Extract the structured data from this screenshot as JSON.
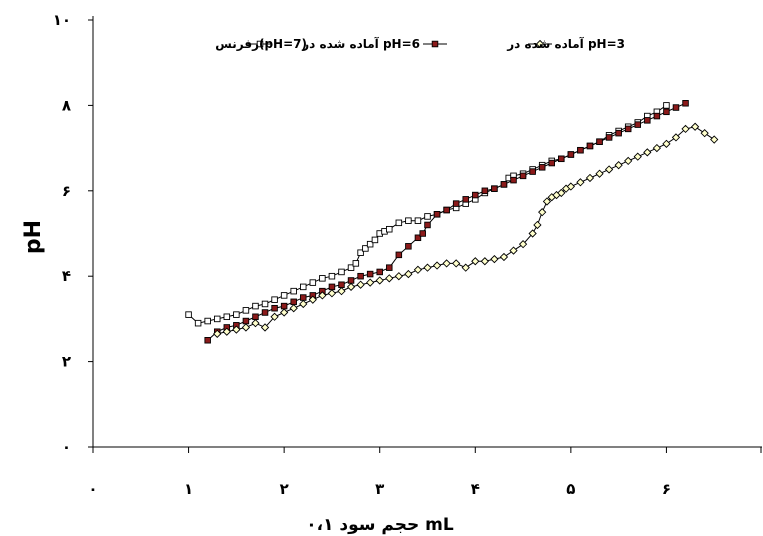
{
  "chart_data": {
    "type": "line",
    "xlabel": "حجم سود ۰،۱ mL",
    "ylabel": "pH",
    "xlim": [
      0,
      7
    ],
    "ylim": [
      0,
      10
    ],
    "x_ticks": [
      0,
      1,
      2,
      3,
      4,
      5,
      6
    ],
    "x_tick_labels": [
      "۰",
      "۱",
      "۲",
      "۳",
      "۴",
      "۵",
      "۶"
    ],
    "y_ticks": [
      0,
      2,
      4,
      6,
      8,
      10
    ],
    "y_tick_labels": [
      "۰",
      "۲",
      "۴",
      "۶",
      "۸",
      "۱۰"
    ],
    "grid": false,
    "legend_position": "top",
    "series": [
      {
        "name": "رفرنس(pH=7)",
        "marker": "square-open",
        "line_color": "#000000",
        "marker_fill": "#ffffff",
        "x": [
          1.0,
          1.1,
          1.2,
          1.3,
          1.4,
          1.5,
          1.6,
          1.7,
          1.8,
          1.9,
          2.0,
          2.1,
          2.2,
          2.3,
          2.4,
          2.5,
          2.6,
          2.7,
          2.75,
          2.8,
          2.85,
          2.9,
          2.95,
          3.0,
          3.05,
          3.1,
          3.2,
          3.3,
          3.4,
          3.5,
          3.6,
          3.7,
          3.8,
          3.9,
          4.0,
          4.1,
          4.2,
          4.3,
          4.35,
          4.4,
          4.5,
          4.6,
          4.7,
          4.8,
          4.9,
          5.0,
          5.1,
          5.2,
          5.3,
          5.4,
          5.5,
          5.6,
          5.7,
          5.8,
          5.9,
          6.0
        ],
        "y": [
          3.1,
          2.9,
          2.95,
          3.0,
          3.05,
          3.1,
          3.2,
          3.3,
          3.35,
          3.45,
          3.55,
          3.65,
          3.75,
          3.85,
          3.95,
          4.0,
          4.1,
          4.2,
          4.3,
          4.55,
          4.65,
          4.75,
          4.85,
          5.0,
          5.05,
          5.1,
          5.25,
          5.3,
          5.3,
          5.4,
          5.45,
          5.55,
          5.6,
          5.7,
          5.8,
          5.95,
          6.05,
          6.15,
          6.3,
          6.35,
          6.4,
          6.5,
          6.6,
          6.7,
          6.75,
          6.85,
          6.95,
          7.05,
          7.15,
          7.3,
          7.4,
          7.5,
          7.6,
          7.75,
          7.85,
          8.0
        ]
      },
      {
        "name": "آماده شده در pH=6",
        "marker": "square-filled",
        "line_color": "#000000",
        "marker_fill": "#8b1a1a",
        "x": [
          1.2,
          1.3,
          1.4,
          1.5,
          1.6,
          1.7,
          1.8,
          1.9,
          2.0,
          2.1,
          2.2,
          2.3,
          2.4,
          2.5,
          2.6,
          2.7,
          2.8,
          2.9,
          3.0,
          3.1,
          3.2,
          3.3,
          3.4,
          3.45,
          3.5,
          3.6,
          3.7,
          3.8,
          3.9,
          4.0,
          4.1,
          4.2,
          4.3,
          4.4,
          4.5,
          4.6,
          4.7,
          4.8,
          4.9,
          5.0,
          5.1,
          5.2,
          5.3,
          5.4,
          5.5,
          5.6,
          5.7,
          5.8,
          5.9,
          6.0,
          6.1,
          6.2
        ],
        "y": [
          2.5,
          2.7,
          2.8,
          2.85,
          2.95,
          3.05,
          3.15,
          3.25,
          3.3,
          3.4,
          3.5,
          3.55,
          3.65,
          3.75,
          3.8,
          3.9,
          4.0,
          4.05,
          4.1,
          4.2,
          4.5,
          4.7,
          4.9,
          5.0,
          5.2,
          5.45,
          5.55,
          5.7,
          5.8,
          5.9,
          6.0,
          6.05,
          6.15,
          6.25,
          6.35,
          6.45,
          6.55,
          6.65,
          6.75,
          6.85,
          6.95,
          7.05,
          7.15,
          7.25,
          7.35,
          7.45,
          7.55,
          7.65,
          7.75,
          7.85,
          7.95,
          8.05
        ]
      },
      {
        "name": "آماده شده در pH=3",
        "marker": "diamond-open",
        "line_color": "#000000",
        "marker_fill": "#ffffcc",
        "x": [
          1.3,
          1.4,
          1.5,
          1.6,
          1.7,
          1.8,
          1.9,
          2.0,
          2.1,
          2.2,
          2.3,
          2.4,
          2.5,
          2.6,
          2.7,
          2.8,
          2.9,
          3.0,
          3.1,
          3.2,
          3.3,
          3.4,
          3.5,
          3.6,
          3.7,
          3.8,
          3.9,
          4.0,
          4.1,
          4.2,
          4.3,
          4.4,
          4.5,
          4.6,
          4.65,
          4.7,
          4.75,
          4.8,
          4.85,
          4.9,
          4.95,
          5.0,
          5.1,
          5.2,
          5.3,
          5.4,
          5.5,
          5.6,
          5.7,
          5.8,
          5.9,
          6.0,
          6.1,
          6.2,
          6.3,
          6.4,
          6.5
        ],
        "y": [
          2.65,
          2.7,
          2.75,
          2.8,
          2.9,
          2.8,
          3.05,
          3.15,
          3.25,
          3.35,
          3.45,
          3.55,
          3.6,
          3.65,
          3.75,
          3.8,
          3.85,
          3.9,
          3.95,
          4.0,
          4.05,
          4.15,
          4.2,
          4.25,
          4.3,
          4.3,
          4.2,
          4.35,
          4.35,
          4.4,
          4.45,
          4.6,
          4.75,
          5.0,
          5.2,
          5.5,
          5.75,
          5.85,
          5.9,
          5.95,
          6.05,
          6.1,
          6.2,
          6.3,
          6.4,
          6.5,
          6.6,
          6.7,
          6.8,
          6.9,
          7.0,
          7.1,
          7.25,
          7.45,
          7.5,
          7.35,
          7.2
        ]
      }
    ]
  }
}
